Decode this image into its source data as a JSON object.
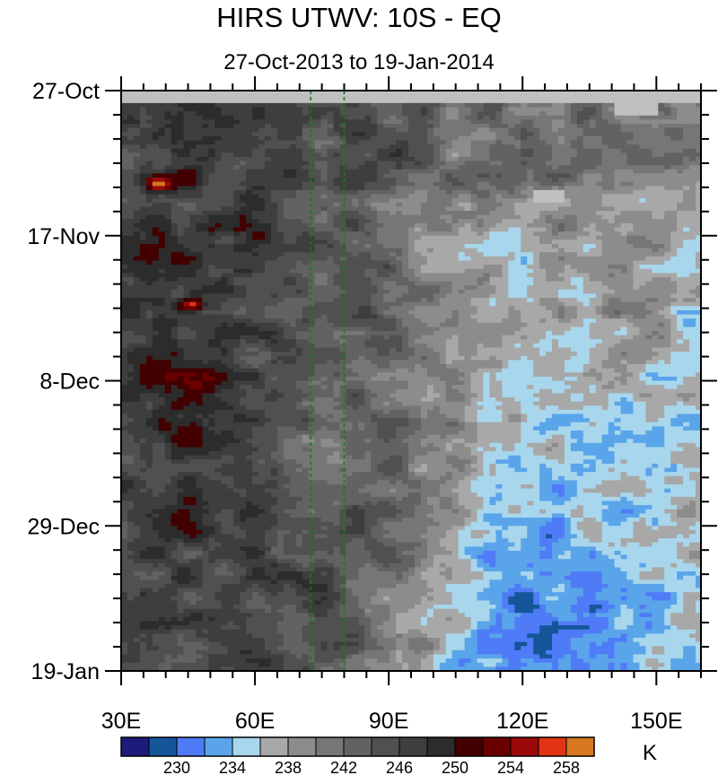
{
  "chart_data": {
    "type": "heatmap",
    "title": "HIRS UTWV: 10S - EQ",
    "subtitle": "27-Oct-2013 to 19-Jan-2014",
    "x_axis": {
      "range": [
        30,
        160
      ],
      "tick_values": [
        30,
        60,
        90,
        120,
        150
      ],
      "tick_labels": [
        "30E",
        "60E",
        "90E",
        "120E",
        "150E"
      ]
    },
    "y_axis": {
      "start_date": "27-Oct-2013",
      "end_date": "19-Jan-2014",
      "range_days": [
        0,
        84
      ],
      "tick_days": [
        0,
        21,
        42,
        63,
        84
      ],
      "tick_labels": [
        "27-Oct",
        "17-Nov",
        "8-Dec",
        "29-Dec",
        "19-Jan"
      ]
    },
    "reference_lines": [
      {
        "longitude": 72.5,
        "style": "dashed",
        "color": "#1a7a1a"
      },
      {
        "longitude": 80,
        "style": "dashed",
        "color": "#1a7a1a"
      }
    ],
    "colorbar": {
      "unit": "K",
      "levels": [
        228,
        230,
        232,
        234,
        236,
        238,
        240,
        242,
        244,
        246,
        248,
        250,
        252,
        254,
        256,
        258
      ],
      "labels": [
        "230",
        "234",
        "238",
        "242",
        "246",
        "250",
        "254",
        "258"
      ],
      "colors": [
        "#1c1c7a",
        "#15569a",
        "#4f7cf6",
        "#5aa5ea",
        "#a8d6ec",
        "#a8a8a8",
        "#8c8c8c",
        "#767676",
        "#626262",
        "#505050",
        "#3e3e3e",
        "#2c2c2c",
        "#420000",
        "#6a0000",
        "#9a0a0a",
        "#e03414",
        "#d6781e"
      ]
    },
    "missing_color": "#c0c0c0"
  }
}
